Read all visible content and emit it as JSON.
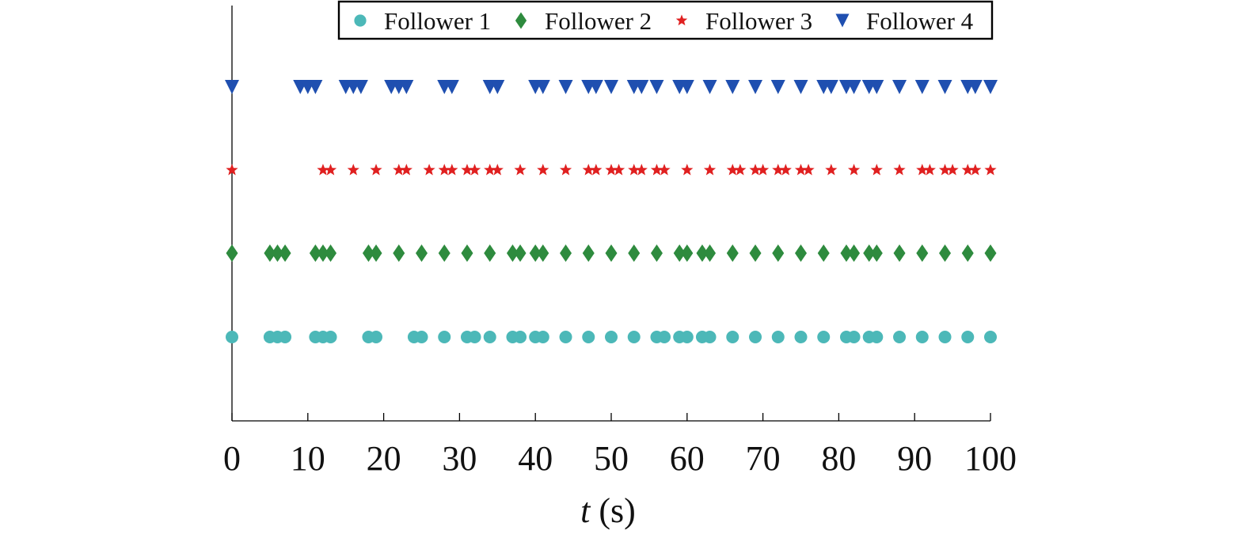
{
  "chart_data": {
    "type": "scatter",
    "title": "",
    "xlabel_var": "t",
    "xlabel_unit": " (s)",
    "xlim": [
      0,
      100
    ],
    "x_ticks": [
      0,
      10,
      20,
      30,
      40,
      50,
      60,
      70,
      80,
      90,
      100
    ],
    "x_tick_labels": [
      "0",
      "10",
      "20",
      "30",
      "40",
      "50",
      "60",
      "70",
      "80",
      "90",
      "100"
    ],
    "y_ticks_shown": false,
    "grid": false,
    "legend": {
      "placement": "top-center",
      "orientation": "horizontal"
    },
    "series": [
      {
        "name": "Follower 1",
        "marker": "circle",
        "color": "#4cb8b8",
        "level": 1,
        "x": [
          0,
          5,
          6,
          7,
          11,
          12,
          13,
          18,
          19,
          24,
          25,
          28,
          31,
          32,
          34,
          37,
          38,
          40,
          41,
          44,
          47,
          50,
          53,
          56,
          57,
          59,
          60,
          62,
          63,
          66,
          69,
          72,
          75,
          78,
          81,
          82,
          84,
          85,
          88,
          91,
          94,
          97,
          100
        ]
      },
      {
        "name": "Follower 2",
        "marker": "diamond",
        "color": "#2e8b3e",
        "level": 2,
        "x": [
          0,
          5,
          6,
          7,
          11,
          12,
          13,
          18,
          19,
          22,
          25,
          28,
          31,
          34,
          37,
          38,
          40,
          41,
          44,
          47,
          50,
          53,
          56,
          59,
          60,
          62,
          63,
          66,
          69,
          72,
          75,
          78,
          81,
          82,
          84,
          85,
          88,
          91,
          94,
          97,
          100
        ]
      },
      {
        "name": "Follower 3",
        "marker": "star",
        "color": "#e02020",
        "level": 3,
        "x": [
          0,
          12,
          13,
          16,
          19,
          22,
          23,
          26,
          28,
          29,
          31,
          32,
          34,
          35,
          38,
          41,
          44,
          47,
          48,
          50,
          51,
          53,
          54,
          56,
          57,
          60,
          63,
          66,
          67,
          69,
          70,
          72,
          73,
          75,
          76,
          79,
          82,
          85,
          88,
          91,
          92,
          94,
          95,
          97,
          98,
          100
        ]
      },
      {
        "name": "Follower 4",
        "marker": "triangle-down",
        "color": "#1f4fb0",
        "level": 4,
        "x": [
          0,
          9,
          10,
          11,
          15,
          16,
          17,
          21,
          22,
          23,
          28,
          29,
          34,
          35,
          40,
          41,
          44,
          47,
          48,
          50,
          53,
          54,
          56,
          59,
          60,
          63,
          66,
          69,
          72,
          75,
          78,
          79,
          81,
          82,
          84,
          85,
          88,
          91,
          94,
          97,
          98,
          100
        ]
      }
    ]
  }
}
